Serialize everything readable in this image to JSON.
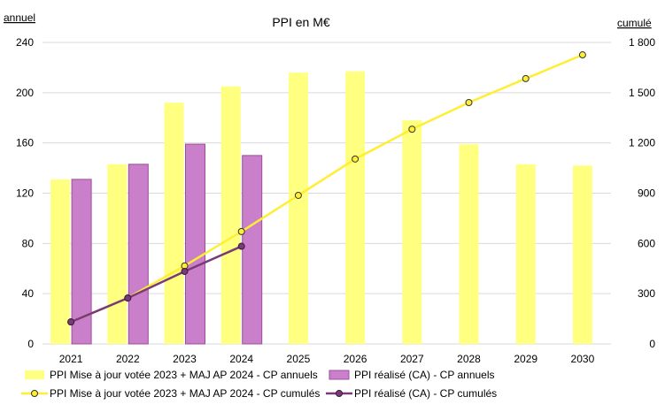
{
  "chart_data": {
    "type": "bar+line",
    "title": "PPI en M€",
    "left_axis_label": "annuel",
    "right_axis_label": "cumulé",
    "categories": [
      "2021",
      "2022",
      "2023",
      "2024",
      "2025",
      "2026",
      "2027",
      "2028",
      "2029",
      "2030"
    ],
    "left_ylim": [
      0,
      240
    ],
    "left_ticks": [
      "0",
      "40",
      "80",
      "120",
      "160",
      "200",
      "240"
    ],
    "right_ylim": [
      0,
      1800
    ],
    "right_ticks": [
      "0",
      "300",
      "600",
      "900",
      "1 200",
      "1 500",
      "1 800"
    ],
    "grid": true,
    "legend_position": "bottom",
    "colors": {
      "plan_bar": "#ffff80",
      "actual_bar": "#c97fc9",
      "actual_bar_stroke": "#9b4f9b",
      "plan_line": "#ffee33",
      "actual_line": "#7a3a7a",
      "grid": "#d9d9d9"
    },
    "series": [
      {
        "name": "PPI Mise à jour votée 2023 + MAJ AP 2024 - CP annuels",
        "kind": "bar",
        "axis": "left",
        "values": [
          131,
          143,
          192,
          205,
          216,
          217,
          178,
          159,
          143,
          142
        ]
      },
      {
        "name": "PPI réalisé (CA) - CP annuels",
        "kind": "bar",
        "axis": "left",
        "values": [
          131,
          143,
          159,
          150,
          null,
          null,
          null,
          null,
          null,
          null
        ]
      },
      {
        "name": "PPI Mise à jour votée 2023  + MAJ AP 2024 - CP cumulés",
        "kind": "line",
        "axis": "right",
        "values": [
          131,
          274,
          466,
          671,
          887,
          1104,
          1282,
          1441,
          1584,
          1726
        ]
      },
      {
        "name": "PPI réalisé (CA) - CP cumulés",
        "kind": "line",
        "axis": "right",
        "values": [
          131,
          274,
          433,
          583,
          null,
          null,
          null,
          null,
          null,
          null
        ]
      }
    ]
  }
}
